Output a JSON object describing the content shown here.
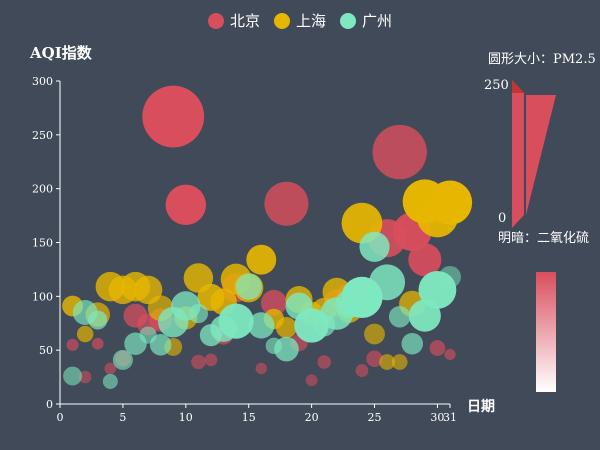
{
  "chart_data": {
    "type": "scatter",
    "legend_placement": "top-center",
    "ylabel": "AQI指数",
    "xlabel": "日期",
    "x_ticks": [
      0,
      5,
      10,
      15,
      20,
      25,
      30,
      31
    ],
    "y_ticks": [
      0,
      50,
      100,
      150,
      200,
      250,
      300
    ],
    "xlim": [
      0,
      31
    ],
    "ylim": [
      0,
      300
    ],
    "grid": false,
    "visual_map": {
      "size_title": "圆形大小：PM2.5",
      "size_range": [
        0,
        250
      ],
      "size_max_label": "250",
      "size_min_label": "0",
      "opacity_title": "明暗：二氧化硫"
    },
    "series": [
      {
        "name": "北京",
        "color": "#d94e5d",
        "points": [
          [
            1,
            55,
            9,
            56
          ],
          [
            2,
            25,
            11,
            21
          ],
          [
            3,
            56,
            7,
            63
          ],
          [
            4,
            33,
            7,
            29
          ],
          [
            5,
            42,
            24,
            44
          ],
          [
            6,
            82,
            58,
            90
          ],
          [
            7,
            74,
            49,
            77
          ],
          [
            8,
            78,
            55,
            80
          ],
          [
            9,
            267,
            216,
            280
          ],
          [
            10,
            185,
            127,
            216
          ],
          [
            11,
            39,
            19,
            38
          ],
          [
            12,
            41,
            11,
            40
          ],
          [
            13,
            64,
            38,
            74
          ],
          [
            14,
            108,
            79,
            120
          ],
          [
            15,
            108,
            63,
            116
          ],
          [
            16,
            33,
            6,
            29
          ],
          [
            17,
            94,
            66,
            110
          ],
          [
            18,
            186,
            142,
            129
          ],
          [
            19,
            57,
            31,
            54
          ],
          [
            20,
            22,
            8,
            17
          ],
          [
            21,
            39,
            15,
            36
          ],
          [
            22,
            94,
            69,
            114
          ],
          [
            23,
            99,
            73,
            110
          ],
          [
            24,
            31,
            12,
            30
          ],
          [
            25,
            42,
            27,
            43
          ],
          [
            26,
            154,
            117,
            157
          ],
          [
            27,
            234,
            185,
            120
          ],
          [
            28,
            160,
            120,
            186
          ],
          [
            29,
            134,
            96,
            165
          ],
          [
            30,
            52,
            24,
            60
          ],
          [
            31,
            46,
            5,
            49
          ]
        ]
      },
      {
        "name": "上海",
        "color": "#e6b600",
        "points": [
          [
            1,
            91,
            45,
            125
          ],
          [
            2,
            65,
            27,
            78
          ],
          [
            3,
            83,
            60,
            84
          ],
          [
            4,
            109,
            81,
            121
          ],
          [
            5,
            106,
            77,
            114
          ],
          [
            6,
            109,
            81,
            121
          ],
          [
            7,
            106,
            77,
            114
          ],
          [
            8,
            89,
            65,
            78
          ],
          [
            9,
            53,
            33,
            47
          ],
          [
            10,
            80,
            55,
            80
          ],
          [
            11,
            117,
            81,
            124
          ],
          [
            12,
            99,
            71,
            142
          ],
          [
            13,
            95,
            69,
            130
          ],
          [
            14,
            116,
            87,
            131
          ],
          [
            15,
            108,
            80,
            121
          ],
          [
            16,
            134,
            83,
            167
          ],
          [
            17,
            79,
            43,
            107
          ],
          [
            18,
            71,
            46,
            89
          ],
          [
            19,
            97,
            71,
            113
          ],
          [
            20,
            84,
            57,
            91
          ],
          [
            21,
            87,
            63,
            101
          ],
          [
            22,
            104,
            77,
            119
          ],
          [
            23,
            87,
            62,
            100
          ],
          [
            24,
            168,
            128,
            172
          ],
          [
            25,
            65,
            45,
            51
          ],
          [
            26,
            39,
            24,
            38
          ],
          [
            27,
            39,
            24,
            39
          ],
          [
            28,
            93,
            68,
            96
          ],
          [
            29,
            188,
            143,
            197
          ],
          [
            30,
            174,
            131,
            174
          ],
          [
            31,
            187,
            143,
            201
          ]
        ]
      },
      {
        "name": "广州",
        "color": "#7ee8c0",
        "points": [
          [
            1,
            26,
            37,
            27
          ],
          [
            2,
            85,
            62,
            71
          ],
          [
            3,
            78,
            38,
            74
          ],
          [
            4,
            21,
            21,
            36
          ],
          [
            5,
            41,
            42,
            46
          ],
          [
            6,
            56,
            52,
            69
          ],
          [
            7,
            64,
            30,
            28
          ],
          [
            8,
            55,
            48,
            74
          ],
          [
            9,
            76,
            85,
            113
          ],
          [
            10,
            91,
            81,
            104
          ],
          [
            11,
            84,
            39,
            60
          ],
          [
            12,
            64,
            51,
            101
          ],
          [
            13,
            70,
            69,
            120
          ],
          [
            14,
            77,
            105,
            178
          ],
          [
            15,
            109,
            68,
            87
          ],
          [
            16,
            73,
            68,
            97
          ],
          [
            17,
            54,
            27,
            47
          ],
          [
            18,
            51,
            61,
            97
          ],
          [
            19,
            91,
            71,
            121
          ],
          [
            20,
            73,
            102,
            182
          ],
          [
            21,
            73,
            50,
            76
          ],
          [
            22,
            84,
            94,
            140
          ],
          [
            23,
            93,
            77,
            104
          ],
          [
            24,
            99,
            130,
            227
          ],
          [
            25,
            146,
            84,
            139
          ],
          [
            26,
            113,
            108,
            137
          ],
          [
            27,
            81,
            48,
            62
          ],
          [
            28,
            56,
            48,
            68
          ],
          [
            29,
            82,
            92,
            174
          ],
          [
            30,
            106,
            116,
            188
          ],
          [
            31,
            118,
            50,
            0
          ]
        ]
      }
    ]
  }
}
